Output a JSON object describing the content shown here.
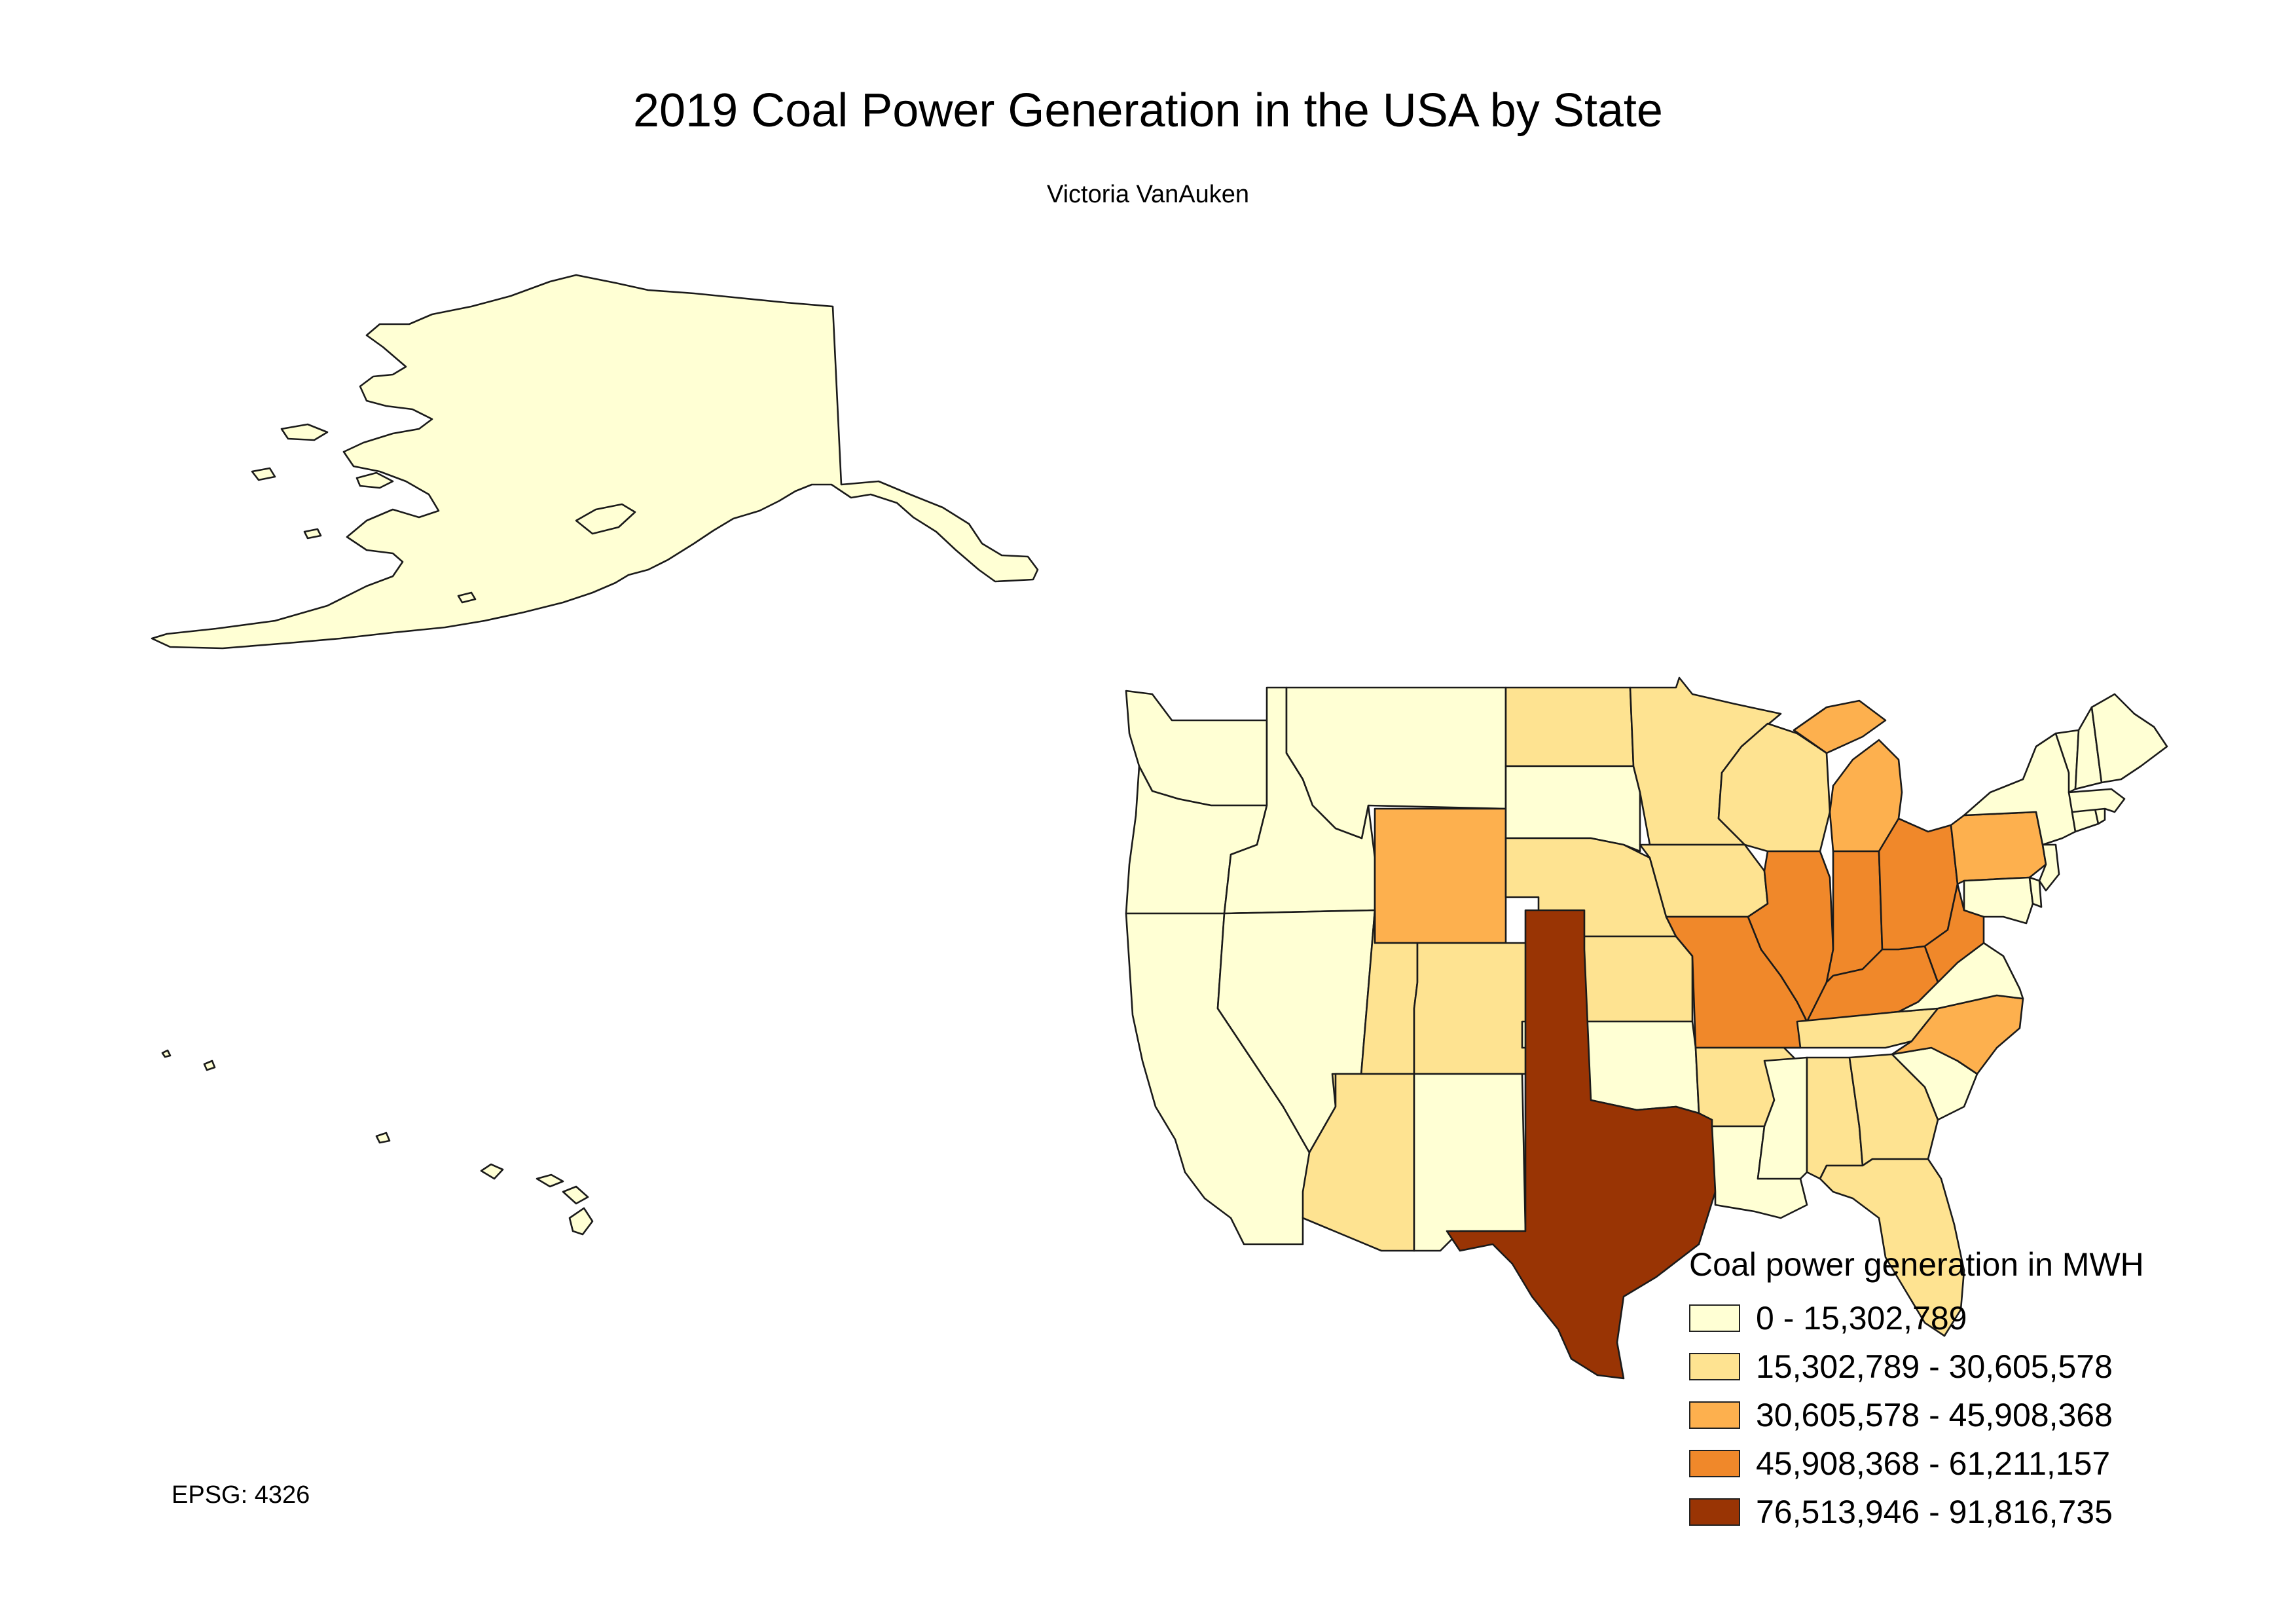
{
  "title": "2019 Coal Power Generation in the USA by State",
  "author": "Victoria VanAuken",
  "crs_label": "EPSG: 4326",
  "legend": {
    "title": "Coal power generation in MWH",
    "classes": [
      {
        "label": "0 - 15,302,789",
        "color": "#ffffd4"
      },
      {
        "label": "15,302,789 - 30,605,578",
        "color": "#fee391"
      },
      {
        "label": "30,605,578 - 45,908,368",
        "color": "#fdb04e"
      },
      {
        "label": "45,908,368 - 61,211,157",
        "color": "#f0882a"
      },
      {
        "label": "76,513,946 - 91,816,735",
        "color": "#993404"
      }
    ]
  },
  "states": [
    {
      "name": "Alaska",
      "class": 0
    },
    {
      "name": "Hawaii",
      "class": 0
    },
    {
      "name": "Washington",
      "class": 0
    },
    {
      "name": "Oregon",
      "class": 0
    },
    {
      "name": "California",
      "class": 0
    },
    {
      "name": "Idaho",
      "class": 0
    },
    {
      "name": "Nevada",
      "class": 0
    },
    {
      "name": "Montana",
      "class": 0
    },
    {
      "name": "Wyoming",
      "class": 2
    },
    {
      "name": "Utah",
      "class": 1
    },
    {
      "name": "Arizona",
      "class": 1
    },
    {
      "name": "Colorado",
      "class": 1
    },
    {
      "name": "New Mexico",
      "class": 0
    },
    {
      "name": "North Dakota",
      "class": 1
    },
    {
      "name": "South Dakota",
      "class": 0
    },
    {
      "name": "Nebraska",
      "class": 1
    },
    {
      "name": "Kansas",
      "class": 1
    },
    {
      "name": "Oklahoma",
      "class": 0
    },
    {
      "name": "Texas",
      "class": 4
    },
    {
      "name": "Minnesota",
      "class": 1
    },
    {
      "name": "Iowa",
      "class": 1
    },
    {
      "name": "Missouri",
      "class": 3
    },
    {
      "name": "Arkansas",
      "class": 1
    },
    {
      "name": "Louisiana",
      "class": 0
    },
    {
      "name": "Wisconsin",
      "class": 1
    },
    {
      "name": "Illinois",
      "class": 3
    },
    {
      "name": "Michigan",
      "class": 2
    },
    {
      "name": "Indiana",
      "class": 3
    },
    {
      "name": "Ohio",
      "class": 3
    },
    {
      "name": "Kentucky",
      "class": 3
    },
    {
      "name": "Tennessee",
      "class": 1
    },
    {
      "name": "Mississippi",
      "class": 0
    },
    {
      "name": "Alabama",
      "class": 1
    },
    {
      "name": "Georgia",
      "class": 1
    },
    {
      "name": "Florida",
      "class": 1
    },
    {
      "name": "South Carolina",
      "class": 0
    },
    {
      "name": "North Carolina",
      "class": 2
    },
    {
      "name": "Virginia",
      "class": 0
    },
    {
      "name": "West Virginia",
      "class": 3
    },
    {
      "name": "Pennsylvania",
      "class": 2
    },
    {
      "name": "New York",
      "class": 0
    },
    {
      "name": "Maryland",
      "class": 0
    },
    {
      "name": "Delaware",
      "class": 0
    },
    {
      "name": "New Jersey",
      "class": 0
    },
    {
      "name": "Connecticut",
      "class": 0
    },
    {
      "name": "Rhode Island",
      "class": 0
    },
    {
      "name": "Massachusetts",
      "class": 0
    },
    {
      "name": "Vermont",
      "class": 0
    },
    {
      "name": "New Hampshire",
      "class": 0
    },
    {
      "name": "Maine",
      "class": 0
    }
  ]
}
